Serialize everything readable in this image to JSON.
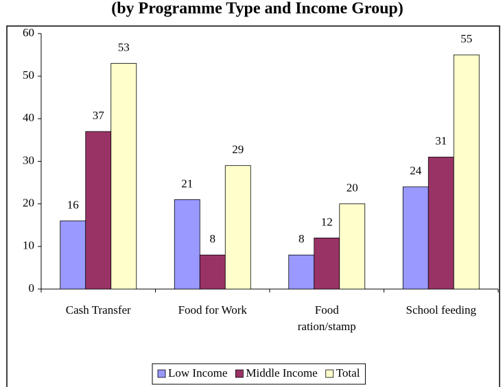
{
  "chart_data": {
    "type": "bar",
    "title": "(by Programme Type and Income Group)",
    "categories": [
      "Cash Transfer",
      "Food for Work",
      "Food ration/stamp",
      "School feeding"
    ],
    "series": [
      {
        "name": "Low Income",
        "color": "#9999ff",
        "values": [
          16,
          21,
          8,
          24
        ]
      },
      {
        "name": "Middle Income",
        "color": "#993366",
        "values": [
          37,
          8,
          12,
          31
        ]
      },
      {
        "name": "Total",
        "color": "#ffffcc",
        "values": [
          53,
          29,
          20,
          55
        ]
      }
    ],
    "ylim": [
      0,
      60
    ],
    "yticks": [
      0,
      10,
      20,
      30,
      40,
      50,
      60
    ],
    "grid": false,
    "legend": "bottom"
  }
}
